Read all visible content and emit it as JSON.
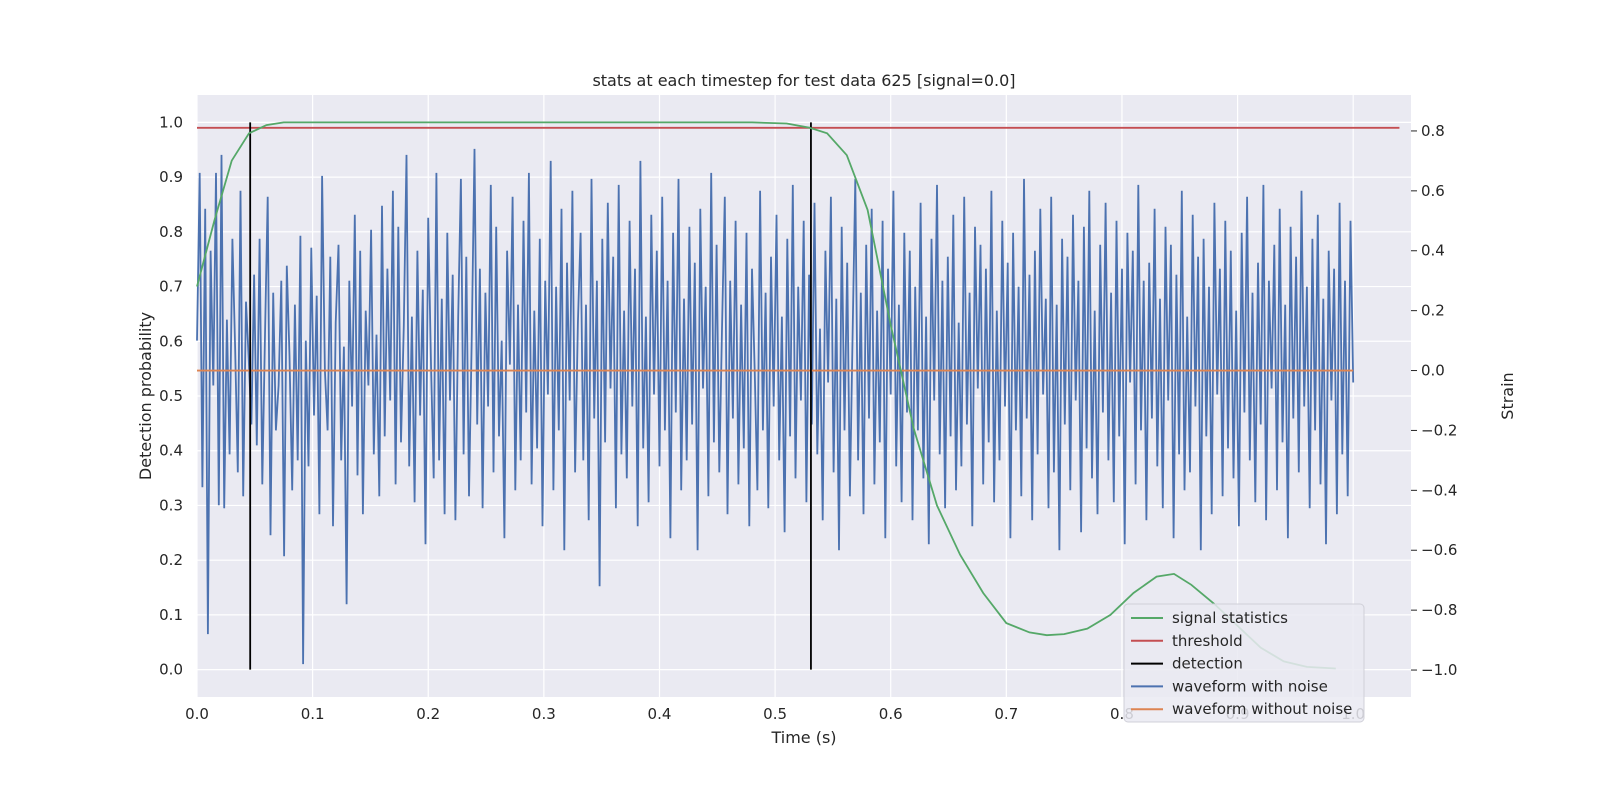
{
  "chart_data": {
    "type": "line",
    "title": "stats at each timestep for test data 625 [signal=0.0]",
    "xlabel": "Time (s)",
    "ylabel_left": "Detection probability",
    "ylabel_right": "Strain",
    "xlim": [
      0.0,
      1.05
    ],
    "ylim_left": [
      -0.05,
      1.05
    ],
    "ylim_right": [
      -1.09,
      0.92
    ],
    "xticks": [
      "0.0",
      "0.1",
      "0.2",
      "0.3",
      "0.4",
      "0.5",
      "0.6",
      "0.7",
      "0.8",
      "0.9",
      "1.0"
    ],
    "yticks_left": [
      "0.0",
      "0.1",
      "0.2",
      "0.3",
      "0.4",
      "0.5",
      "0.6",
      "0.7",
      "0.8",
      "0.9",
      "1.0"
    ],
    "yticks_right": [
      "−1.0",
      "−0.8",
      "−0.6",
      "−0.4",
      "−0.2",
      "0.0",
      "0.2",
      "0.4",
      "0.6",
      "0.8"
    ],
    "grid": true,
    "legend_position": "lower-right",
    "colors": {
      "background": "#eaeaf2",
      "grid": "#ffffff",
      "signal_statistics": "#55a868",
      "threshold": "#c44e52",
      "detection": "#000000",
      "waveform_with_noise": "#4c72b0",
      "waveform_without_noise": "#dd8452"
    },
    "legend": [
      {
        "label": "signal statistics",
        "color": "#55a868"
      },
      {
        "label": "threshold",
        "color": "#c44e52"
      },
      {
        "label": "detection",
        "color": "#000000"
      },
      {
        "label": "waveform with noise",
        "color": "#4c72b0"
      },
      {
        "label": "waveform without noise",
        "color": "#dd8452"
      }
    ],
    "series": [
      {
        "name": "signal statistics",
        "axis": "left",
        "x": [
          0.0,
          0.015,
          0.03,
          0.045,
          0.06,
          0.075,
          0.1,
          0.2,
          0.3,
          0.4,
          0.48,
          0.51,
          0.53,
          0.545,
          0.562,
          0.58,
          0.6,
          0.62,
          0.64,
          0.66,
          0.68,
          0.7,
          0.72,
          0.735,
          0.75,
          0.77,
          0.79,
          0.81,
          0.83,
          0.845,
          0.86,
          0.88,
          0.9,
          0.92,
          0.94,
          0.96,
          0.985
        ],
        "y": [
          0.7,
          0.82,
          0.93,
          0.98,
          0.995,
          1.0,
          1.0,
          1.0,
          1.0,
          1.0,
          1.0,
          0.998,
          0.99,
          0.98,
          0.94,
          0.84,
          0.63,
          0.44,
          0.3,
          0.21,
          0.14,
          0.085,
          0.068,
          0.063,
          0.065,
          0.075,
          0.1,
          0.14,
          0.17,
          0.175,
          0.155,
          0.12,
          0.08,
          0.04,
          0.015,
          0.005,
          0.002
        ]
      },
      {
        "name": "threshold",
        "axis": "left",
        "x": [
          0.0,
          1.04
        ],
        "y": [
          0.99,
          0.99
        ]
      },
      {
        "name": "detection",
        "axis": "left",
        "type": "vlines",
        "x": [
          0.046,
          0.531
        ],
        "y": [
          0.0,
          1.0
        ]
      },
      {
        "name": "waveform without noise",
        "axis": "right",
        "x": [
          0.0,
          1.0
        ],
        "y": [
          0.0,
          0.0
        ]
      },
      {
        "name": "waveform with noise",
        "axis": "right",
        "x_range": [
          0.0,
          1.0
        ],
        "y": [
          0.1,
          0.66,
          -0.39,
          0.54,
          -0.88,
          0.4,
          -0.05,
          0.66,
          -0.45,
          0.72,
          -0.46,
          0.17,
          -0.28,
          0.44,
          0.08,
          -0.34,
          0.6,
          -0.42,
          0.23,
          0.04,
          -0.18,
          0.32,
          -0.25,
          0.44,
          -0.38,
          0.12,
          0.58,
          -0.55,
          0.26,
          -0.2,
          -0.05,
          0.3,
          -0.62,
          0.35,
          0.05,
          -0.4,
          0.22,
          -0.3,
          0.45,
          -0.98,
          0.1,
          -0.32,
          0.41,
          -0.15,
          0.25,
          -0.48,
          0.65,
          0.0,
          -0.2,
          0.38,
          -0.52,
          0.16,
          0.42,
          -0.3,
          0.08,
          -0.78,
          0.3,
          -0.12,
          0.52,
          -0.35,
          0.4,
          -0.48,
          0.2,
          -0.05,
          0.47,
          -0.28,
          0.12,
          -0.42,
          0.55,
          -0.22,
          0.34,
          -0.1,
          0.6,
          -0.38,
          0.48,
          -0.24,
          0.15,
          0.72,
          -0.32,
          0.18,
          -0.44,
          0.4,
          -0.15,
          0.27,
          -0.58,
          0.51,
          0.02,
          -0.36,
          0.66,
          -0.3,
          0.24,
          -0.48,
          0.46,
          -0.1,
          0.32,
          -0.5,
          0.18,
          0.64,
          -0.28,
          0.38,
          -0.42,
          0.12,
          0.74,
          -0.18,
          0.34,
          -0.46,
          0.26,
          -0.12,
          0.62,
          -0.34,
          0.48,
          -0.22,
          0.1,
          -0.56,
          0.4,
          0.02,
          0.58,
          -0.4,
          0.22,
          -0.3,
          0.5,
          -0.14,
          0.66,
          -0.38,
          0.2,
          -0.26,
          0.44,
          -0.52,
          0.3,
          -0.08,
          0.7,
          -0.4,
          0.28,
          -0.2,
          0.54,
          -0.6,
          0.36,
          -0.1,
          0.6,
          -0.34,
          0.16,
          0.46,
          -0.3,
          0.22,
          -0.5,
          0.64,
          -0.16,
          0.3,
          -0.72,
          0.44,
          -0.24,
          0.56,
          -0.06,
          0.38,
          -0.46,
          0.62,
          -0.28,
          0.2,
          -0.36,
          0.5,
          -0.12,
          0.34,
          -0.52,
          0.7,
          -0.26,
          0.18,
          -0.44,
          0.52,
          -0.08,
          0.4,
          -0.32,
          0.58,
          -0.2,
          0.3,
          -0.56,
          0.46,
          -0.14,
          0.64,
          -0.4,
          0.24,
          -0.3,
          0.48,
          -0.18,
          0.36,
          -0.6,
          0.54,
          -0.06,
          0.28,
          -0.42,
          0.66,
          -0.24,
          0.42,
          -0.34,
          0.14,
          0.58,
          -0.48,
          0.3,
          -0.16,
          0.5,
          -0.38,
          0.22,
          -0.26,
          0.46,
          -0.52,
          0.34,
          0.0,
          -0.4,
          0.6,
          -0.2,
          0.26,
          -0.46,
          0.38,
          -0.12,
          0.52,
          -0.3,
          0.18,
          -0.54,
          0.44,
          -0.22,
          0.62,
          -0.36,
          0.28,
          -0.1,
          0.5,
          -0.44,
          0.32,
          -0.18,
          0.56,
          -0.28,
          0.14,
          -0.5,
          0.4,
          -0.04,
          0.58,
          -0.34,
          0.24,
          -0.6,
          0.48,
          -0.2,
          0.36,
          -0.42,
          0.12,
          0.64,
          -0.3,
          0.26,
          -0.48,
          0.42,
          -0.16,
          0.54,
          -0.38,
          0.2,
          -0.24,
          0.5,
          -0.56,
          0.34,
          -0.08,
          0.6,
          -0.32,
          0.22,
          -0.44,
          0.46,
          -0.14,
          0.4,
          -0.5,
          0.28,
          -0.2,
          0.56,
          -0.36,
          0.18,
          -0.58,
          0.44,
          -0.1,
          0.62,
          -0.28,
          0.3,
          -0.46,
          0.38,
          -0.22,
          0.52,
          -0.4,
          0.16,
          -0.32,
          0.58,
          -0.18,
          0.26,
          -0.52,
          0.48,
          -0.06,
          0.42,
          -0.38,
          0.34,
          -0.24,
          0.6,
          -0.44,
          0.2,
          -0.3,
          0.5,
          -0.12,
          0.36,
          -0.56,
          0.46,
          -0.2,
          0.28,
          -0.42,
          0.64,
          -0.16,
          0.32,
          -0.5,
          0.4,
          -0.28,
          0.54,
          -0.08,
          0.24,
          -0.46,
          0.58,
          -0.34,
          0.22,
          -0.6,
          0.44,
          -0.18,
          0.38,
          -0.4,
          0.52,
          -0.1,
          0.3,
          -0.54,
          0.48,
          -0.26,
          0.6,
          -0.36,
          0.2,
          -0.48,
          0.42,
          -0.14,
          0.56,
          -0.3,
          0.26,
          -0.44,
          0.5,
          -0.22,
          0.34,
          -0.58,
          0.46,
          -0.04,
          0.4,
          -0.38,
          0.62,
          -0.2,
          0.3,
          -0.5,
          0.36,
          -0.16,
          0.54,
          -0.32,
          0.24,
          -0.46,
          0.48,
          -0.1,
          0.42,
          -0.56,
          0.32,
          -0.28,
          0.6,
          -0.4,
          0.18,
          -0.34,
          0.52,
          -0.12,
          0.38,
          -0.6,
          0.44,
          -0.22,
          0.28,
          -0.48,
          0.56,
          -0.08,
          0.34,
          -0.42,
          0.5,
          -0.26,
          0.4,
          -0.36,
          0.2,
          -0.52,
          0.46,
          -0.14,
          0.58,
          -0.3,
          0.26,
          -0.44,
          0.36,
          -0.18,
          0.62,
          -0.5,
          0.3,
          -0.06,
          0.42,
          -0.4,
          0.54,
          -0.24,
          0.22,
          -0.56,
          0.48,
          -0.16,
          0.38,
          -0.34,
          0.6,
          -0.12,
          0.28,
          -0.46,
          0.44,
          -0.2,
          0.52,
          -0.38,
          0.24,
          -0.58,
          0.4,
          -0.1,
          0.34,
          -0.48,
          0.56,
          -0.28,
          0.3,
          -0.42,
          0.5,
          -0.04
        ]
      }
    ]
  }
}
